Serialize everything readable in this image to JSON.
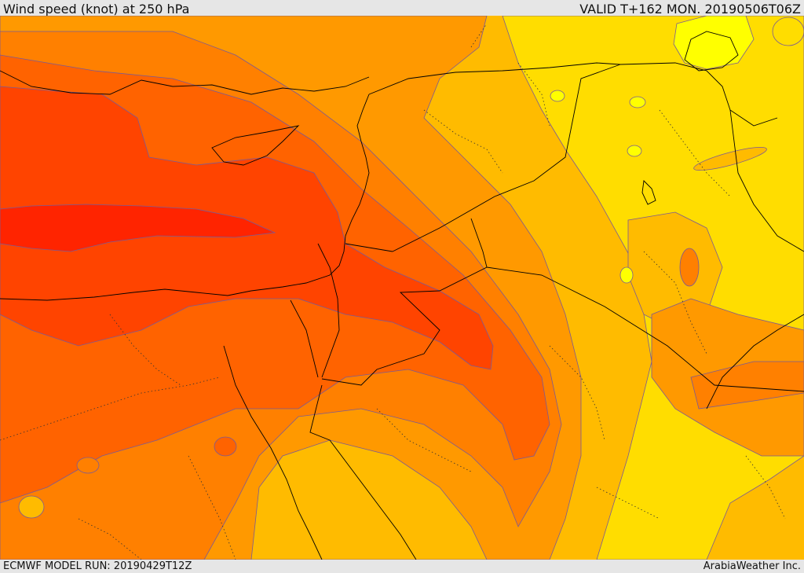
{
  "header": {
    "title": "Wind speed (knot) at 250 hPa",
    "valid": "VALID T+162 MON. 20190506T06Z"
  },
  "footer": {
    "model_run": "ECMWF MODEL RUN: 20190429T12Z",
    "credit": "ArabiaWeather Inc."
  },
  "colors": {
    "band_yellow_light": "#ffff00",
    "band_yellow": "#ffdd00",
    "band_amber": "#ffbb00",
    "band_orange_light": "#ff9900",
    "band_orange": "#ff8000",
    "band_orange_dark": "#ff6300",
    "band_red_orange": "#ff4400",
    "band_red": "#ff2400",
    "contour": "#7a5a96",
    "coast": "#000000"
  }
}
